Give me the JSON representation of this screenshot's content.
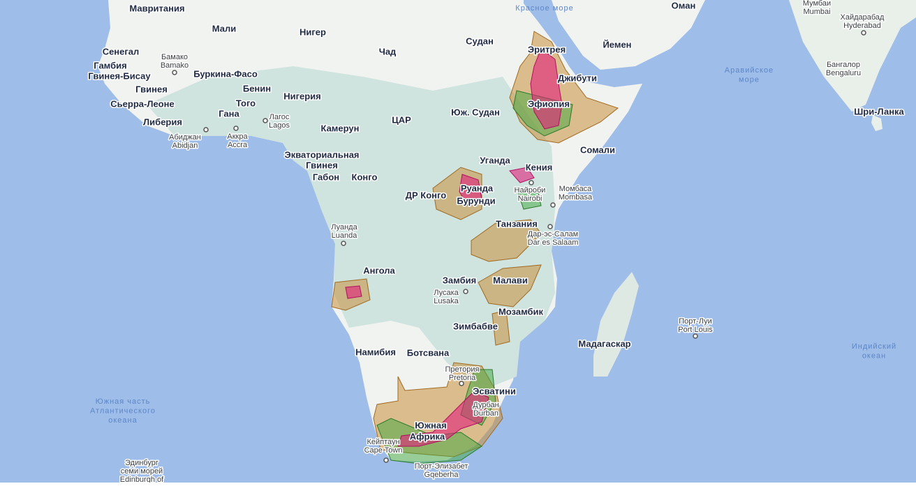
{
  "countries": [
    "Мавритания",
    "Мали",
    "Нигер",
    "Чад",
    "Судан",
    "Эритрея",
    "Йемен",
    "Оман",
    "Сенегал",
    "Гамбия",
    "Гвинея-Бисау",
    "Гвинея",
    "Буркина-Фасо",
    "Бенин",
    "Нигерия",
    "Сьерра-Леоне",
    "Того",
    "Гана",
    "Либерия",
    "Камерун",
    "ЦАР",
    "Юж. Судан",
    "Джибути",
    "Эфиопия",
    "Сомали",
    "Экваториальная",
    "Гвинея",
    "Габон",
    "Конго",
    "Уганда",
    "Кения",
    "Руанда",
    "ДР Конго",
    "Бурунди",
    "Танзания",
    "Ангола",
    "Замбия",
    "Малави",
    "Мозамбик",
    "Зимбабве",
    "Мадагаскар",
    "Намибия",
    "Ботсвана",
    "Эсватини",
    "Южная",
    "Африка",
    "Шри-Ланка"
  ],
  "cities": [
    {
      "lines": [
        "Бамако",
        "Bamako"
      ]
    },
    {
      "lines": [
        "Лагос",
        "Lagos"
      ]
    },
    {
      "lines": [
        "Абиджан",
        "Abidjan"
      ]
    },
    {
      "lines": [
        "Аккра",
        "Accra"
      ]
    },
    {
      "lines": [
        "Найроби",
        "Nairobi"
      ]
    },
    {
      "lines": [
        "Момбаса",
        "Mombasa"
      ]
    },
    {
      "lines": [
        "Дар-эс-Салам",
        "Dar es Salaam"
      ]
    },
    {
      "lines": [
        "Луанда",
        "Luanda"
      ]
    },
    {
      "lines": [
        "Лусака",
        "Lusaka"
      ]
    },
    {
      "lines": [
        "Претория",
        "Pretoria"
      ]
    },
    {
      "lines": [
        "Дурбан",
        "Durban"
      ]
    },
    {
      "lines": [
        "Кейптаун",
        "Cape Town"
      ]
    },
    {
      "lines": [
        "Порт-Элизабет",
        "Gqeberha"
      ]
    },
    {
      "lines": [
        "Порт-Луи",
        "Port Louis"
      ]
    },
    {
      "lines": [
        "Мумбаи",
        "Mumbai"
      ]
    },
    {
      "lines": [
        "Хайдарабад",
        "Hyderabad"
      ]
    },
    {
      "lines": [
        "Бангалор",
        "Bengaluru"
      ]
    },
    {
      "lines": [
        "Эдинбург",
        "семи морей",
        "Edinburgh of"
      ]
    }
  ],
  "water": [
    {
      "lines": [
        "Красное море"
      ]
    },
    {
      "lines": [
        "Аравийское",
        "море"
      ]
    },
    {
      "lines": [
        "Индийский",
        "океан"
      ]
    },
    {
      "lines": [
        "Южная часть",
        "Атлантического",
        "океана"
      ]
    }
  ]
}
